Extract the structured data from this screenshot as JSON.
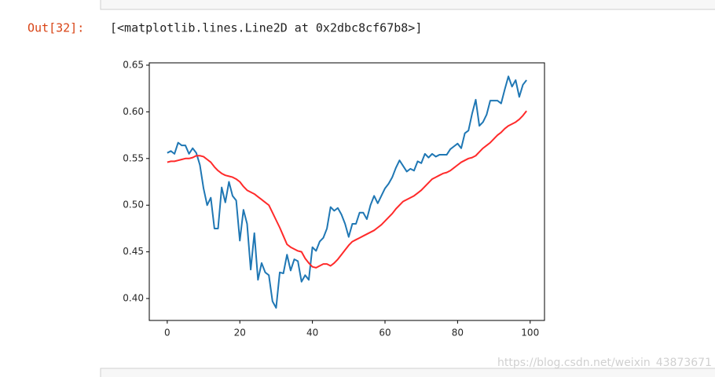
{
  "cell": {
    "prompt": "Out[32]:",
    "output": "[<matplotlib.lines.Line2D at 0x2dbc8cf67b8>]",
    "watermark": "https://blog.csdn.net/weixin_43873671"
  },
  "chart_data": {
    "type": "line",
    "x": [
      0,
      1,
      2,
      3,
      4,
      5,
      6,
      7,
      8,
      9,
      10,
      11,
      12,
      13,
      14,
      15,
      16,
      17,
      18,
      19,
      20,
      21,
      22,
      23,
      24,
      25,
      26,
      27,
      28,
      29,
      30,
      31,
      32,
      33,
      34,
      35,
      36,
      37,
      38,
      39,
      40,
      41,
      42,
      43,
      44,
      45,
      46,
      47,
      48,
      49,
      50,
      51,
      52,
      53,
      54,
      55,
      56,
      57,
      58,
      59,
      60,
      61,
      62,
      63,
      64,
      65,
      66,
      67,
      68,
      69,
      70,
      71,
      72,
      73,
      74,
      75,
      76,
      77,
      78,
      79,
      80,
      81,
      82,
      83,
      84,
      85,
      86,
      87,
      88,
      89,
      90,
      91,
      92,
      93,
      94,
      95,
      96,
      97,
      98,
      99
    ],
    "series": [
      {
        "color": "#1f77b4",
        "values": [
          0.556,
          0.558,
          0.555,
          0.567,
          0.564,
          0.564,
          0.555,
          0.561,
          0.556,
          0.543,
          0.518,
          0.5,
          0.508,
          0.475,
          0.475,
          0.519,
          0.503,
          0.525,
          0.51,
          0.505,
          0.462,
          0.495,
          0.48,
          0.431,
          0.47,
          0.42,
          0.438,
          0.428,
          0.425,
          0.397,
          0.39,
          0.428,
          0.427,
          0.447,
          0.43,
          0.442,
          0.44,
          0.418,
          0.425,
          0.42,
          0.455,
          0.451,
          0.461,
          0.465,
          0.475,
          0.498,
          0.494,
          0.497,
          0.49,
          0.48,
          0.466,
          0.48,
          0.48,
          0.492,
          0.492,
          0.485,
          0.5,
          0.51,
          0.502,
          0.51,
          0.518,
          0.523,
          0.53,
          0.54,
          0.548,
          0.542,
          0.536,
          0.539,
          0.537,
          0.547,
          0.545,
          0.555,
          0.551,
          0.555,
          0.552,
          0.554,
          0.554,
          0.554,
          0.56,
          0.563,
          0.566,
          0.561,
          0.577,
          0.58,
          0.598,
          0.613,
          0.585,
          0.589,
          0.597,
          0.612,
          0.612,
          0.612,
          0.609,
          0.624,
          0.638,
          0.627,
          0.634,
          0.616,
          0.629,
          0.634
        ]
      },
      {
        "color": "#ff2a2a",
        "values": [
          0.546,
          0.547,
          0.547,
          0.548,
          0.549,
          0.55,
          0.55,
          0.551,
          0.553,
          0.553,
          0.552,
          0.549,
          0.546,
          0.541,
          0.537,
          0.534,
          0.532,
          0.531,
          0.53,
          0.528,
          0.525,
          0.52,
          0.516,
          0.514,
          0.512,
          0.509,
          0.506,
          0.503,
          0.5,
          0.492,
          0.484,
          0.476,
          0.467,
          0.458,
          0.455,
          0.453,
          0.451,
          0.45,
          0.443,
          0.438,
          0.434,
          0.433,
          0.435,
          0.437,
          0.437,
          0.435,
          0.438,
          0.442,
          0.447,
          0.452,
          0.457,
          0.461,
          0.463,
          0.465,
          0.467,
          0.469,
          0.471,
          0.473,
          0.476,
          0.479,
          0.483,
          0.487,
          0.491,
          0.496,
          0.5,
          0.504,
          0.506,
          0.508,
          0.51,
          0.513,
          0.516,
          0.52,
          0.524,
          0.528,
          0.53,
          0.532,
          0.534,
          0.535,
          0.537,
          0.54,
          0.543,
          0.546,
          0.548,
          0.55,
          0.551,
          0.553,
          0.557,
          0.561,
          0.564,
          0.567,
          0.571,
          0.575,
          0.578,
          0.582,
          0.585,
          0.587,
          0.589,
          0.592,
          0.596,
          0.601
        ]
      }
    ],
    "xlim": [
      -4.95,
      103.95
    ],
    "xticks": [
      0,
      20,
      40,
      60,
      80,
      100
    ],
    "ylim": [
      0.3765,
      0.6525
    ],
    "yticks": [
      {
        "value": 0.4,
        "label": "0.40"
      },
      0.45,
      {
        "value": 0.5,
        "label": "0.50"
      },
      0.55,
      {
        "value": 0.6,
        "label": "0.60"
      },
      0.65
    ],
    "grid": false
  }
}
